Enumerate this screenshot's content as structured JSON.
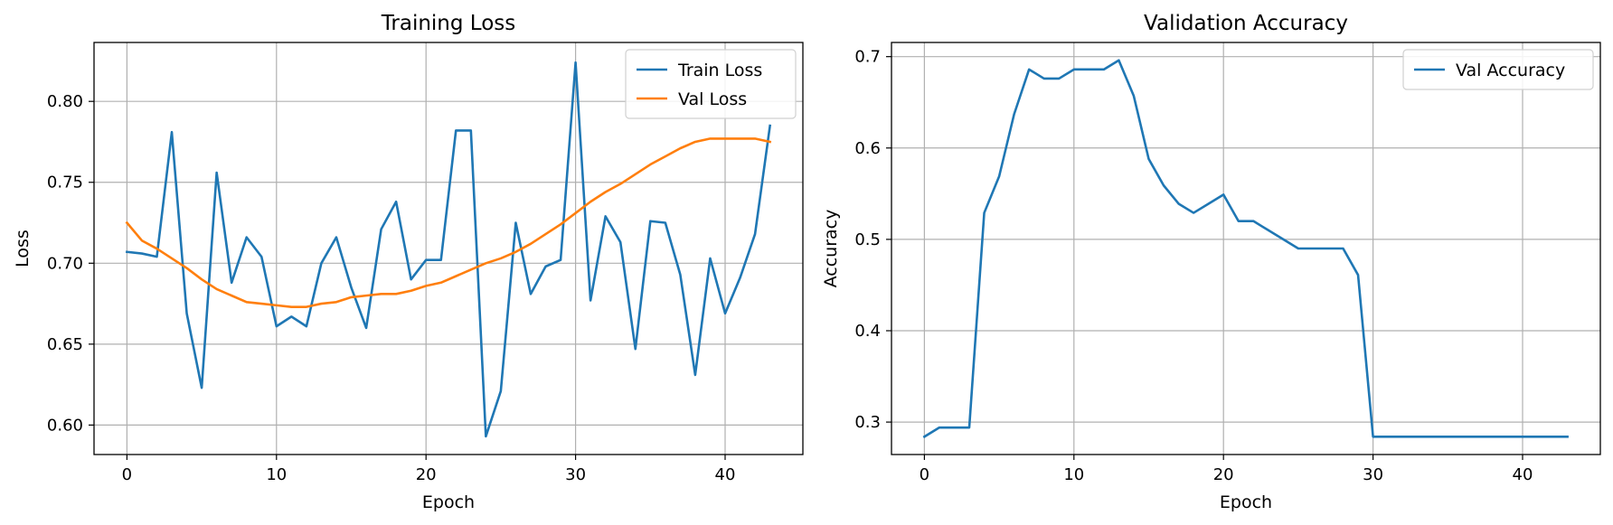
{
  "chart_data": [
    {
      "type": "line",
      "title": "Training Loss",
      "xlabel": "Epoch",
      "ylabel": "Loss",
      "xlim": [
        -2.2,
        45.2
      ],
      "ylim": [
        0.5818,
        0.8364
      ],
      "xticks": [
        0,
        10,
        20,
        30,
        40
      ],
      "yticks": [
        0.6,
        0.65,
        0.7,
        0.75,
        0.8
      ],
      "ytick_labels": [
        "0.60",
        "0.65",
        "0.70",
        "0.75",
        "0.80"
      ],
      "grid": true,
      "legend_position": "top-right",
      "x": [
        0,
        1,
        2,
        3,
        4,
        5,
        6,
        7,
        8,
        9,
        10,
        11,
        12,
        13,
        14,
        15,
        16,
        17,
        18,
        19,
        20,
        21,
        22,
        23,
        24,
        25,
        26,
        27,
        28,
        29,
        30,
        31,
        32,
        33,
        34,
        35,
        36,
        37,
        38,
        39,
        40,
        41,
        42,
        43
      ],
      "series": [
        {
          "name": "Train Loss",
          "color": "#1f77b4",
          "values": [
            0.707,
            0.706,
            0.704,
            0.781,
            0.669,
            0.623,
            0.756,
            0.688,
            0.716,
            0.704,
            0.661,
            0.667,
            0.661,
            0.7,
            0.716,
            0.685,
            0.66,
            0.721,
            0.738,
            0.69,
            0.702,
            0.702,
            0.782,
            0.782,
            0.593,
            0.621,
            0.725,
            0.681,
            0.698,
            0.702,
            0.824,
            0.677,
            0.729,
            0.713,
            0.647,
            0.726,
            0.725,
            0.693,
            0.631,
            0.703,
            0.669,
            0.691,
            0.718,
            0.785
          ]
        },
        {
          "name": "Val Loss",
          "color": "#ff7f0e",
          "values": [
            0.725,
            0.714,
            0.709,
            0.703,
            0.697,
            0.69,
            0.684,
            0.68,
            0.676,
            0.675,
            0.674,
            0.673,
            0.673,
            0.675,
            0.676,
            0.679,
            0.68,
            0.681,
            0.681,
            0.683,
            0.686,
            0.688,
            0.692,
            0.696,
            0.7,
            0.703,
            0.707,
            0.712,
            0.718,
            0.724,
            0.731,
            0.738,
            0.744,
            0.749,
            0.755,
            0.761,
            0.766,
            0.771,
            0.775,
            0.777,
            0.777,
            0.777,
            0.777,
            0.775
          ]
        }
      ]
    },
    {
      "type": "line",
      "title": "Validation Accuracy",
      "xlabel": "Epoch",
      "ylabel": "Accuracy",
      "xlim": [
        -2.2,
        45.2
      ],
      "ylim": [
        0.2645,
        0.7155
      ],
      "xticks": [
        0,
        10,
        20,
        30,
        40
      ],
      "yticks": [
        0.3,
        0.4,
        0.5,
        0.6,
        0.7
      ],
      "ytick_labels": [
        "0.3",
        "0.4",
        "0.5",
        "0.6",
        "0.7"
      ],
      "grid": true,
      "legend_position": "top-right",
      "x": [
        0,
        1,
        2,
        3,
        4,
        5,
        6,
        7,
        8,
        9,
        10,
        11,
        12,
        13,
        14,
        15,
        16,
        17,
        18,
        19,
        20,
        21,
        22,
        23,
        24,
        25,
        26,
        27,
        28,
        29,
        30,
        31,
        32,
        33,
        34,
        35,
        36,
        37,
        38,
        39,
        40,
        41,
        42,
        43
      ],
      "series": [
        {
          "name": "Val Accuracy",
          "color": "#1f77b4",
          "values": [
            0.284,
            0.294,
            0.294,
            0.294,
            0.529,
            0.569,
            0.637,
            0.686,
            0.676,
            0.676,
            0.686,
            0.686,
            0.686,
            0.696,
            0.657,
            0.588,
            0.559,
            0.539,
            0.529,
            0.539,
            0.549,
            0.52,
            0.52,
            0.51,
            0.5,
            0.49,
            0.49,
            0.49,
            0.49,
            0.461,
            0.284,
            0.284,
            0.284,
            0.284,
            0.284,
            0.284,
            0.284,
            0.284,
            0.284,
            0.284,
            0.284,
            0.284,
            0.284,
            0.284
          ]
        }
      ]
    }
  ]
}
